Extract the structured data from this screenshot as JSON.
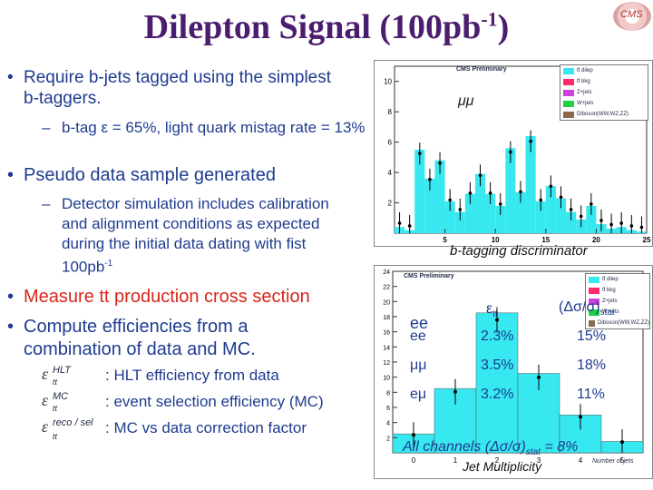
{
  "title": {
    "main": "Dilepton Signal (100pb",
    "sup": "-1",
    "close": ")"
  },
  "logo": {
    "text": "CMS"
  },
  "bullets": [
    {
      "text": "Require b-jets tagged using the simplest b-taggers."
    },
    {
      "text": "Pseudo data sample generated"
    },
    {
      "text": "Measure tt production cross section"
    },
    {
      "text": "Compute efficiencies from a combination of data and MC."
    }
  ],
  "subbullets": {
    "btag": "b-tag ε = 65%, light quark mistag rate = 13%",
    "detector": "Detector simulation includes calibration and alignment conditions as expected during the initial data dating with fist 100pb",
    "detector_sup": "-1"
  },
  "efficiencies": [
    {
      "symbol": "ε",
      "sup": "HLT",
      "sub": "tt",
      "text": ": HLT efficiency from data"
    },
    {
      "symbol": "ε",
      "sup": "MC",
      "sub": "tt",
      "text": ": event selection efficiency (MC)"
    },
    {
      "symbol": "ε",
      "sup": "reco / sel",
      "sub": "tt",
      "text": ": MC vs data correction factor"
    }
  ],
  "plot1": {
    "label": "CMS Preliminary",
    "channel": "μμ",
    "xlabel": "b-tagging discriminator",
    "yticks": [
      "10",
      "8",
      "6",
      "4",
      "2"
    ],
    "xticks": [
      "5",
      "10",
      "15",
      "20",
      "25"
    ],
    "legend": [
      "tt̄ dilep",
      "tt̄ bkg",
      "Z+jets",
      "W+jets",
      "Diboson(WW,WZ,ZZ)"
    ]
  },
  "plot2": {
    "label": "CMS Preliminary",
    "xlabel": "Jet Multiplicity",
    "axis_title": "Number of jets",
    "yticks": [
      "24",
      "22",
      "20",
      "18",
      "16",
      "14",
      "12",
      "10",
      "8",
      "6",
      "4",
      "2"
    ],
    "xticks": [
      "0",
      "1",
      "2",
      "3",
      "4",
      "5"
    ],
    "legend": [
      "tt̄ dilep",
      "tt̄ bkg",
      "Z+jets",
      "W+jets",
      "Diboson(WW,WZ,ZZ)"
    ]
  },
  "table": {
    "header_eff": "ε",
    "header_eff_sub": "tt",
    "header_err": "(Δσ/σ)",
    "header_err_sub": "stat",
    "ghost_label": "ee",
    "rows": [
      {
        "channel": "ee",
        "eff": "2.3%",
        "err": "15%"
      },
      {
        "channel": "μμ",
        "eff": "3.5%",
        "err": "18%"
      },
      {
        "channel": "eμ",
        "eff": "3.2%",
        "err": "11%"
      }
    ],
    "summary_a": "All channels (Δσ/σ)",
    "summary_sub": "stat",
    "summary_b": "= 8%"
  },
  "colors": {
    "ttdilep": "#37e8f0",
    "ttbkg": "#ff2a6a",
    "zjets": "#d040e0",
    "wjets": "#20d040",
    "diboson": "#8a6a4a"
  },
  "chart_data": [
    {
      "type": "bar",
      "title": "CMS Preliminary",
      "xlabel": "b-tagging discriminator",
      "x": [
        0,
        1,
        2,
        3,
        4,
        5,
        6,
        7,
        8,
        9,
        10,
        11,
        12,
        13,
        14,
        15,
        16,
        17,
        18,
        19,
        20,
        21,
        22,
        23,
        24
      ],
      "series": [
        {
          "name": "tt̄ dilep",
          "values": [
            0.4,
            0.2,
            5.5,
            3.6,
            4.8,
            2.1,
            1.4,
            2.6,
            3.9,
            2.6,
            1.8,
            5.6,
            2.7,
            6.4,
            2.1,
            3.1,
            2.3,
            1.4,
            0.9,
            1.8,
            0.6,
            0.3,
            0.4,
            0.2,
            0.1
          ]
        }
      ],
      "xlim": [
        0,
        25
      ],
      "ylim": [
        0,
        11
      ]
    },
    {
      "type": "bar",
      "title": "CMS Preliminary",
      "xlabel": "Number of jets",
      "categories": [
        "0",
        "1",
        "2",
        "3",
        "4",
        "5"
      ],
      "series": [
        {
          "name": "tt̄ dilep",
          "values": [
            2.5,
            8.5,
            18.5,
            10.5,
            5.0,
            1.5
          ]
        }
      ],
      "ylim": [
        0,
        24
      ]
    }
  ]
}
